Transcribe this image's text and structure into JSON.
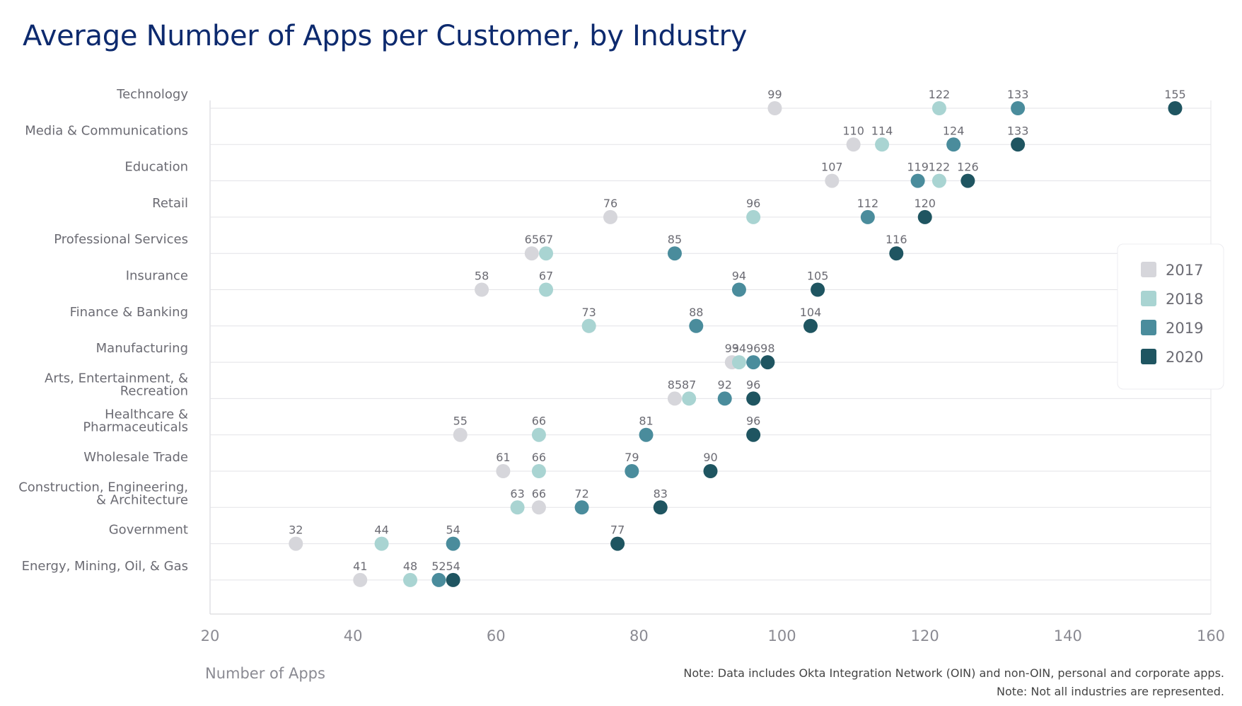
{
  "chart_data": {
    "type": "scatter",
    "title": "Average Number of Apps per Customer, by Industry",
    "xlabel": "Number of Apps",
    "ylabel": "",
    "xlim": [
      20,
      160
    ],
    "xticks": [
      20,
      40,
      60,
      80,
      100,
      120,
      140,
      160
    ],
    "grid": true,
    "legend_position": "right",
    "categories": [
      [
        "Technology"
      ],
      [
        "Media & Communications"
      ],
      [
        "Education"
      ],
      [
        "Retail"
      ],
      [
        "Professional Services"
      ],
      [
        "Insurance"
      ],
      [
        "Finance & Banking"
      ],
      [
        "Manufacturing"
      ],
      [
        "Arts, Entertainment, &",
        "Recreation"
      ],
      [
        "Healthcare &",
        "Pharmaceuticals"
      ],
      [
        "Wholesale Trade"
      ],
      [
        "Construction, Engineering,",
        "& Architecture"
      ],
      [
        "Government"
      ],
      [
        "Energy, Mining, Oil, & Gas"
      ]
    ],
    "series": [
      {
        "name": "2017",
        "color": "#d6d6db",
        "values": [
          99,
          110,
          107,
          76,
          65,
          58,
          73,
          93,
          85,
          55,
          61,
          66,
          32,
          41
        ]
      },
      {
        "name": "2018",
        "color": "#a9d4d2",
        "values": [
          122,
          114,
          122,
          96,
          67,
          67,
          73,
          94,
          87,
          66,
          66,
          63,
          44,
          48
        ]
      },
      {
        "name": "2019",
        "color": "#4a8c9c",
        "values": [
          133,
          124,
          119,
          112,
          85,
          94,
          88,
          96,
          92,
          81,
          79,
          72,
          54,
          52
        ]
      },
      {
        "name": "2020",
        "color": "#1f5561",
        "values": [
          155,
          133,
          126,
          120,
          116,
          105,
          104,
          98,
          96,
          96,
          90,
          83,
          77,
          54
        ]
      }
    ],
    "notes": [
      "Note: Data includes Okta Integration Network (OIN) and non-OIN, personal and corporate apps.",
      "Note: Not all industries are represented."
    ]
  }
}
